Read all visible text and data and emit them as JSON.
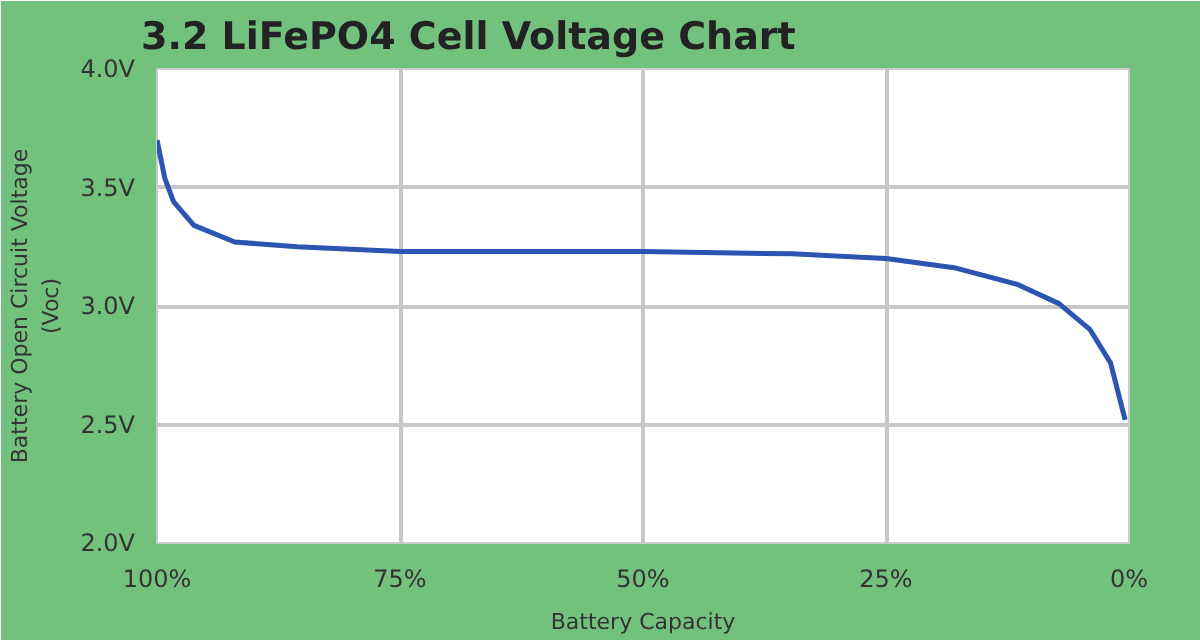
{
  "chart_data": {
    "type": "line",
    "title": "3.2 LiFePO4 Cell Voltage Chart",
    "xlabel": "Battery Capacity",
    "ylabel": "Battery Open Circuit Voltage\n(Voc)",
    "x": [
      100,
      99.2,
      98.3,
      96.2,
      92,
      85.6,
      75,
      50,
      34.7,
      25,
      17.8,
      11.4,
      7.2,
      4,
      1.9,
      0.4
    ],
    "series": [
      {
        "color": "#2b55b0",
        "values": [
          3.7,
          3.54,
          3.44,
          3.34,
          3.27,
          3.25,
          3.23,
          3.23,
          3.22,
          3.2,
          3.16,
          3.09,
          3.01,
          2.9,
          2.76,
          2.52
        ]
      }
    ],
    "xlim": [
      100,
      0
    ],
    "ylim": [
      2.0,
      4.0
    ],
    "xticks": [
      {
        "value": 100,
        "label": "100%"
      },
      {
        "value": 75,
        "label": "75%"
      },
      {
        "value": 50,
        "label": "50%"
      },
      {
        "value": 25,
        "label": "25%"
      },
      {
        "value": 0,
        "label": "0%"
      }
    ],
    "yticks": [
      {
        "value": 2.0,
        "label": "2.0V"
      },
      {
        "value": 2.5,
        "label": "2.5V"
      },
      {
        "value": 3.0,
        "label": "3.0V"
      },
      {
        "value": 3.5,
        "label": "3.5V"
      },
      {
        "value": 4.0,
        "label": "4.0V"
      }
    ],
    "grid": true,
    "marker": "none",
    "line_style": "solid"
  }
}
